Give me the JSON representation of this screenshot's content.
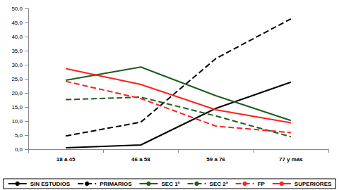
{
  "chart_data": {
    "type": "line",
    "categories": [
      "18 a 45",
      "46 a 58",
      "59 a 76",
      "77 y más"
    ],
    "series": [
      {
        "name": "SIN ESTUDIOS",
        "color": "#000000",
        "line_style": "solid",
        "values": [
          0.5,
          1.5,
          14.5,
          23.8
        ]
      },
      {
        "name": "PRIMARIOS",
        "color": "#000000",
        "line_style": "dashed",
        "values": [
          4.7,
          9.6,
          32.2,
          46.3
        ]
      },
      {
        "name": "SEC 1ª",
        "color": "#1f5c1f",
        "line_style": "solid",
        "values": [
          24.5,
          29.2,
          19.0,
          10.2
        ]
      },
      {
        "name": "SEC 2ª",
        "color": "#1f5c1f",
        "line_style": "dashed",
        "values": [
          17.6,
          18.5,
          11.8,
          4.4
        ]
      },
      {
        "name": "FP",
        "color": "#ff2020",
        "line_style": "dashed",
        "values": [
          24.1,
          18.0,
          8.2,
          5.9
        ]
      },
      {
        "name": "SUPERIORES",
        "color": "#ff2020",
        "line_style": "solid",
        "values": [
          28.6,
          23.0,
          14.0,
          9.4
        ]
      }
    ],
    "ylim": [
      0,
      50
    ],
    "yticks": [
      {
        "value": 0,
        "label": "0,0"
      },
      {
        "value": 5,
        "label": "5,0"
      },
      {
        "value": 10,
        "label": "10,0"
      },
      {
        "value": 15,
        "label": "15,0"
      },
      {
        "value": 20,
        "label": "20,0"
      },
      {
        "value": 25,
        "label": "25,0"
      },
      {
        "value": 30,
        "label": "30,0"
      },
      {
        "value": 35,
        "label": "35,0"
      },
      {
        "value": 40,
        "label": "40,0"
      },
      {
        "value": 45,
        "label": "45,0"
      },
      {
        "value": 50,
        "label": "50,0"
      }
    ],
    "grid": false,
    "legend": "bottom",
    "marker": "none"
  }
}
